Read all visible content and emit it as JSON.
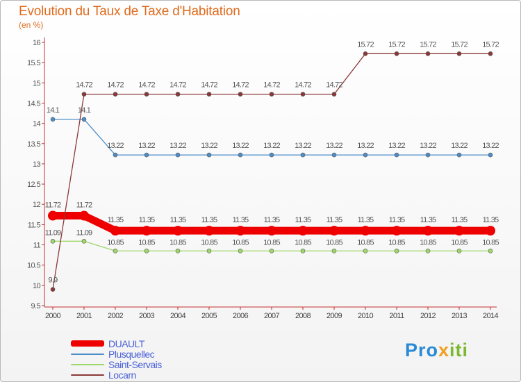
{
  "chart_data": {
    "type": "line",
    "title": "Evolution du Taux de Taxe d'Habitation",
    "ylabel": "(en %)",
    "xlabel": "",
    "categories": [
      "2000",
      "2001",
      "2002",
      "2003",
      "2004",
      "2005",
      "2006",
      "2007",
      "2008",
      "2009",
      "2010",
      "2011",
      "2012",
      "2013",
      "2014"
    ],
    "ylim": [
      9.5,
      16
    ],
    "yticks": [
      "9.5",
      "10",
      "10.5",
      "11",
      "11.5",
      "12",
      "12.5",
      "13",
      "13.5",
      "14",
      "14.5",
      "15",
      "15.5",
      "16"
    ],
    "grid": false,
    "legend_position": "bottom-left",
    "series": [
      {
        "name": "DUAULT",
        "color": "#ee0000",
        "values": [
          11.72,
          11.72,
          11.35,
          11.35,
          11.35,
          11.35,
          11.35,
          11.35,
          11.35,
          11.35,
          11.35,
          11.35,
          11.35,
          11.35,
          11.35
        ],
        "labels": [
          "11.72",
          "11.72",
          "11.35",
          "11.35",
          "11.35",
          "11.35",
          "11.35",
          "11.35",
          "11.35",
          "11.35",
          "11.35",
          "11.35",
          "11.35",
          "11.35",
          "11.35"
        ]
      },
      {
        "name": "Plusquellec",
        "color": "#4d8ec8",
        "values": [
          14.1,
          14.1,
          13.22,
          13.22,
          13.22,
          13.22,
          13.22,
          13.22,
          13.22,
          13.22,
          13.22,
          13.22,
          13.22,
          13.22,
          13.22
        ],
        "labels": [
          "14.1",
          "14.1",
          "13.22",
          "13.22",
          "13.22",
          "13.22",
          "13.22",
          "13.22",
          "13.22",
          "13.22",
          "13.22",
          "13.22",
          "13.22",
          "13.22",
          "13.22"
        ]
      },
      {
        "name": "Saint-Servais",
        "color": "#9ed86a",
        "values": [
          11.09,
          11.09,
          10.85,
          10.85,
          10.85,
          10.85,
          10.85,
          10.85,
          10.85,
          10.85,
          10.85,
          10.85,
          10.85,
          10.85,
          10.85
        ],
        "labels": [
          "11.09",
          "11.09",
          "10.85",
          "10.85",
          "10.85",
          "10.85",
          "10.85",
          "10.85",
          "10.85",
          "10.85",
          "10.85",
          "10.85",
          "10.85",
          "10.85",
          "10.85"
        ]
      },
      {
        "name": "Locarn",
        "color": "#8b3838",
        "values": [
          9.9,
          14.72,
          14.72,
          14.72,
          14.72,
          14.72,
          14.72,
          14.72,
          14.72,
          14.72,
          15.72,
          15.72,
          15.72,
          15.72,
          15.72
        ],
        "labels": [
          "9.9",
          "14.72",
          "14.72",
          "14.72",
          "14.72",
          "14.72",
          "14.72",
          "14.72",
          "14.72",
          "14.72",
          "15.72",
          "15.72",
          "15.72",
          "15.72",
          "15.72"
        ]
      }
    ]
  },
  "brand": {
    "part1": "Pro",
    "part2": "x",
    "part3": "iti"
  }
}
